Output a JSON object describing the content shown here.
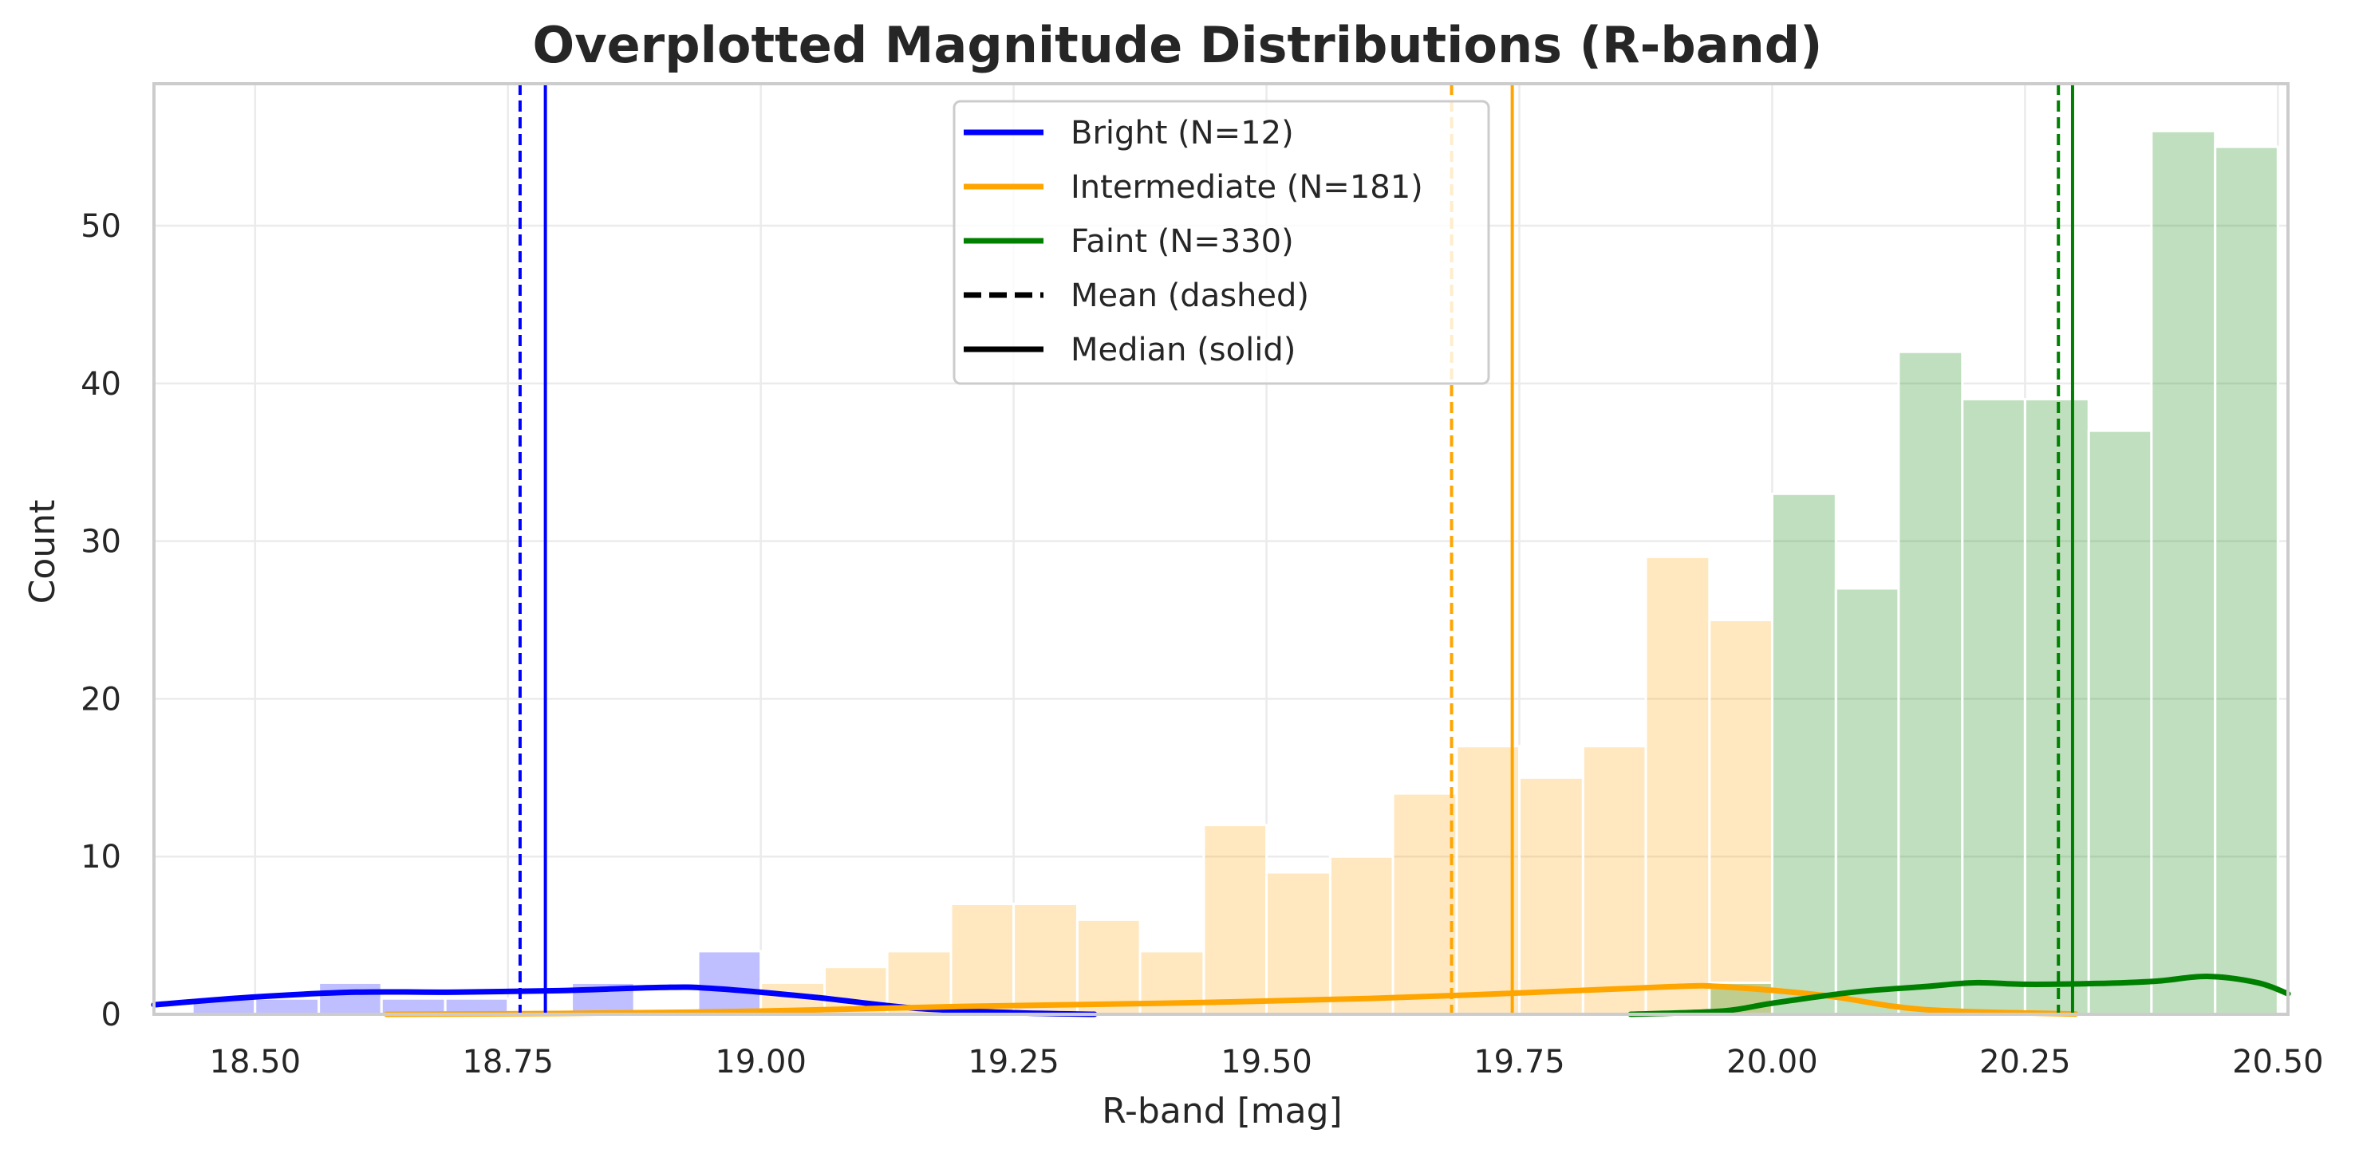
{
  "chart_data": {
    "type": "bar",
    "title": "Overplotted Magnitude Distributions (R-band)",
    "xlabel": "R-band [mag]",
    "ylabel": "Count",
    "xlim": [
      18.4,
      20.51
    ],
    "ylim": [
      0,
      59
    ],
    "xticks": [
      "18.50",
      "18.75",
      "19.00",
      "19.25",
      "19.50",
      "19.75",
      "20.00",
      "20.25",
      "20.50"
    ],
    "yticks": [
      "0",
      "10",
      "20",
      "30",
      "40",
      "50"
    ],
    "grid": true,
    "legend_position": "top-center",
    "series": [
      {
        "name": "Bright (N=12)",
        "color": "#0000ff",
        "bin_edges": [
          18.438,
          18.5,
          18.563,
          18.625,
          18.688,
          18.75,
          18.813,
          18.875,
          18.938,
          19.0
        ],
        "counts": [
          1,
          1,
          2,
          1,
          1,
          0,
          2,
          0,
          4
        ],
        "mean": 18.762,
        "median": 18.787,
        "kde": [
          [
            18.4,
            0.6
          ],
          [
            18.5,
            1.1
          ],
          [
            18.6,
            1.4
          ],
          [
            18.7,
            1.4
          ],
          [
            18.8,
            1.5
          ],
          [
            18.9,
            1.7
          ],
          [
            18.95,
            1.65
          ],
          [
            19.05,
            1.1
          ],
          [
            19.15,
            0.4
          ],
          [
            19.25,
            0.1
          ],
          [
            19.33,
            0.0
          ]
        ]
      },
      {
        "name": "Intermediate (N=181)",
        "color": "#ffa500",
        "bin_edges": [
          19.0,
          19.063,
          19.125,
          19.188,
          19.25,
          19.313,
          19.375,
          19.438,
          19.5,
          19.563,
          19.625,
          19.688,
          19.75,
          19.813,
          19.875,
          19.938,
          20.0
        ],
        "counts": [
          2,
          3,
          4,
          7,
          7,
          6,
          4,
          12,
          9,
          10,
          14,
          17,
          15,
          17,
          29,
          25
        ],
        "mean": 19.683,
        "median": 19.743,
        "kde": [
          [
            18.63,
            0.0
          ],
          [
            18.8,
            0.05
          ],
          [
            19.0,
            0.2
          ],
          [
            19.2,
            0.5
          ],
          [
            19.4,
            0.7
          ],
          [
            19.6,
            1.0
          ],
          [
            19.75,
            1.35
          ],
          [
            19.9,
            1.75
          ],
          [
            19.95,
            1.75
          ],
          [
            20.05,
            1.2
          ],
          [
            20.15,
            0.3
          ],
          [
            20.3,
            0.02
          ]
        ]
      },
      {
        "name": "Faint (N=330)",
        "color": "#008000",
        "bin_edges": [
          19.938,
          20.0,
          20.063,
          20.125,
          20.188,
          20.25,
          20.313,
          20.375,
          20.438,
          20.5
        ],
        "counts": [
          2,
          33,
          27,
          42,
          39,
          39,
          37,
          56,
          55
        ],
        "mean": 20.283,
        "median": 20.297,
        "kde": [
          [
            19.86,
            0.0
          ],
          [
            19.95,
            0.2
          ],
          [
            20.0,
            0.7
          ],
          [
            20.08,
            1.4
          ],
          [
            20.15,
            1.75
          ],
          [
            20.2,
            2.0
          ],
          [
            20.25,
            1.9
          ],
          [
            20.32,
            1.95
          ],
          [
            20.38,
            2.1
          ],
          [
            20.43,
            2.4
          ],
          [
            20.48,
            2.0
          ],
          [
            20.51,
            1.3
          ]
        ]
      }
    ],
    "legend": [
      {
        "label": "Bright (N=12)",
        "style": "solid",
        "color": "#0000ff"
      },
      {
        "label": "Intermediate (N=181)",
        "style": "solid",
        "color": "#ffa500"
      },
      {
        "label": "Faint (N=330)",
        "style": "solid",
        "color": "#008000"
      },
      {
        "label": "Mean (dashed)",
        "style": "dashed",
        "color": "#000000"
      },
      {
        "label": "Median (solid)",
        "style": "solid",
        "color": "#000000"
      }
    ]
  }
}
